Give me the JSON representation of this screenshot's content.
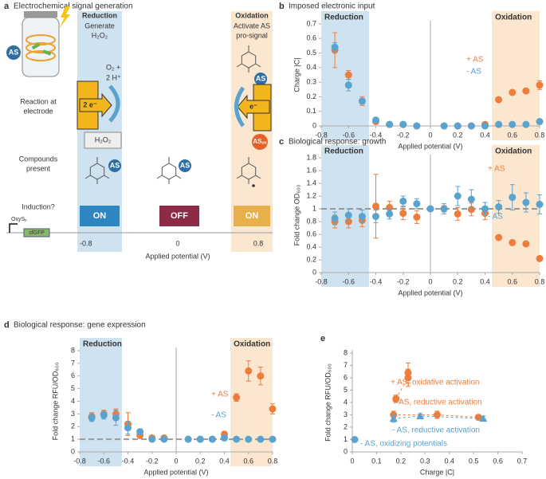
{
  "diagram": {
    "panel": "a",
    "title": "Electrochemical signal generation",
    "reduction": {
      "heading": "Reduction",
      "lines": [
        "Generate",
        "H₂O₂"
      ]
    },
    "oxidation": {
      "heading": "Oxidation",
      "lines": [
        "Activate AS",
        "pro-signal"
      ]
    },
    "row_labels": [
      [
        "Reaction at",
        "electrode"
      ],
      [
        "Compounds",
        "present"
      ],
      [
        "Induction?"
      ]
    ],
    "electrons": [
      "2 e⁻",
      "e⁻"
    ],
    "products": [
      "O₂ +",
      "2 H⁺"
    ],
    "compound_box": "H₂O₂",
    "badge": "AS",
    "oxidized": "ASₒₓ",
    "states": [
      "ON",
      "OFF",
      "ON"
    ],
    "axis_labels": [
      "-0.8",
      "0",
      "0.8"
    ],
    "xlabel": "Applied potential (V)",
    "promoter": "OxySₚ",
    "gene": "sfGFP"
  },
  "chart_data": [
    {
      "panel": "b",
      "type": "scatter",
      "title": "Imposed electronic input",
      "xlabel": "Applied potential (V)",
      "ylabel": "Charge |C|",
      "x": [
        -0.7,
        -0.6,
        -0.5,
        -0.4,
        -0.3,
        -0.2,
        -0.1,
        0.1,
        0.2,
        0.3,
        0.4,
        0.5,
        0.6,
        0.7,
        0.8
      ],
      "xlim": [
        -0.8,
        0.8
      ],
      "xticks": [
        -0.8,
        -0.6,
        -0.4,
        -0.2,
        0,
        0.2,
        0.4,
        0.6,
        0.8
      ],
      "ylim": [
        0,
        0.7
      ],
      "yticks": [
        0,
        0.1,
        0.2,
        0.3,
        0.4,
        0.5,
        0.6,
        0.7
      ],
      "regions": [
        {
          "label": "Reduction",
          "range": [
            -0.8,
            -0.45
          ],
          "color": "#cfe2ef"
        },
        {
          "label": "Oxidation",
          "range": [
            0.45,
            0.8
          ],
          "color": "#fbe6d0"
        }
      ],
      "series": [
        {
          "name": "+ AS",
          "color": "#ee7d3b",
          "values": [
            0.52,
            0.35,
            0.17,
            0.03,
            0.01,
            0.01,
            0,
            0,
            0,
            0,
            0.01,
            0.18,
            0.23,
            0.24,
            0.28
          ],
          "errors": [
            0.12,
            0.03,
            0.03,
            0.01,
            0,
            0,
            0,
            0,
            0,
            0,
            0,
            0.01,
            0.01,
            0.01,
            0.03
          ]
        },
        {
          "name": "- AS",
          "color": "#5aa3cf",
          "values": [
            0.54,
            0.28,
            0.17,
            0.04,
            0.01,
            0.01,
            0,
            0,
            0,
            0,
            0,
            0.01,
            0.01,
            0.01,
            0.03
          ],
          "errors": [
            0.03,
            0.04,
            0.02,
            0.01,
            0,
            0,
            0,
            0,
            0,
            0,
            0,
            0,
            0,
            0,
            0.01
          ]
        }
      ]
    },
    {
      "panel": "c",
      "type": "scatter",
      "title": "Biological response: growth",
      "xlabel": "Applied potential (V)",
      "ylabel": "Fold change OD₆₀₀",
      "x": [
        -0.7,
        -0.6,
        -0.5,
        -0.4,
        -0.3,
        -0.2,
        -0.1,
        0,
        0.1,
        0.2,
        0.3,
        0.4,
        0.5,
        0.6,
        0.7,
        0.8
      ],
      "xlim": [
        -0.8,
        0.8
      ],
      "xticks": [
        -0.8,
        -0.6,
        -0.4,
        -0.2,
        0,
        0.2,
        0.4,
        0.6,
        0.8
      ],
      "ylim": [
        0,
        1.8
      ],
      "yticks": [
        0,
        0.2,
        0.4,
        0.6,
        0.8,
        1,
        1.2,
        1.4,
        1.6,
        1.8
      ],
      "refline": 1,
      "regions": [
        {
          "label": "Reduction",
          "range": [
            -0.8,
            -0.45
          ],
          "color": "#cfe2ef"
        },
        {
          "label": "Oxidation",
          "range": [
            0.45,
            0.8
          ],
          "color": "#fbe6d0"
        }
      ],
      "series": [
        {
          "name": "+ AS",
          "color": "#ee7d3b",
          "values": [
            0.8,
            0.8,
            0.82,
            1.04,
            1.02,
            0.93,
            0.87,
            1,
            1,
            0.92,
            0.99,
            0.93,
            0.55,
            0.47,
            0.45,
            0.22
          ],
          "errors": [
            0.1,
            0.1,
            0.1,
            0.5,
            0.1,
            0.1,
            0.1,
            0,
            0.05,
            0.1,
            0.1,
            0.1,
            0.03,
            0.03,
            0.03,
            0.03
          ]
        },
        {
          "name": "- AS",
          "color": "#5aa3cf",
          "values": [
            0.85,
            0.9,
            0.88,
            0.88,
            0.92,
            1.12,
            1.08,
            1,
            1,
            1.2,
            1.15,
            1,
            1.03,
            1.18,
            1.1,
            1.07
          ],
          "errors": [
            0.1,
            0.1,
            0.1,
            0.1,
            0.08,
            0.08,
            0.08,
            0,
            0.08,
            0.15,
            0.15,
            0.1,
            0.1,
            0.2,
            0.15,
            0.15
          ]
        }
      ]
    },
    {
      "panel": "d",
      "type": "scatter",
      "title": "Biological response: gene expression",
      "xlabel": "Applied potential (V)",
      "ylabel": "Fold change RFU/OD₆₀₀",
      "x": [
        -0.7,
        -0.6,
        -0.5,
        -0.4,
        -0.3,
        -0.2,
        -0.1,
        0.1,
        0.2,
        0.3,
        0.4,
        0.5,
        0.6,
        0.7,
        0.8
      ],
      "xlim": [
        -0.8,
        0.8
      ],
      "xticks": [
        -0.8,
        -0.6,
        -0.4,
        -0.2,
        0,
        0.2,
        0.4,
        0.6,
        0.8
      ],
      "ylim": [
        0,
        8
      ],
      "yticks": [
        0,
        1,
        2,
        3,
        4,
        5,
        6,
        7,
        8
      ],
      "refline": 1,
      "regions": [
        {
          "label": "Reduction",
          "range": [
            -0.8,
            -0.45
          ],
          "color": "#cfe2ef"
        },
        {
          "label": "Oxidation",
          "range": [
            0.45,
            0.8
          ],
          "color": "#fbe6d0"
        }
      ],
      "series": [
        {
          "name": "+ AS",
          "color": "#ee7d3b",
          "values": [
            2.8,
            3.0,
            3.0,
            2.2,
            1.3,
            1.1,
            1.1,
            1.0,
            1.0,
            1.0,
            1.4,
            4.3,
            6.4,
            6.0,
            3.4
          ],
          "errors": [
            0.3,
            0.3,
            0.4,
            0.9,
            0.2,
            0.2,
            0.2,
            0.1,
            0.1,
            0.1,
            0.2,
            0.3,
            0.8,
            0.7,
            0.4
          ]
        },
        {
          "name": "- AS",
          "color": "#5aa3cf",
          "values": [
            2.7,
            2.9,
            2.7,
            1.9,
            1.6,
            1.0,
            1.0,
            1.0,
            1.0,
            1.0,
            1.1,
            1.0,
            1.0,
            1.0,
            1.0
          ],
          "errors": [
            0.3,
            0.3,
            0.6,
            0.5,
            0.2,
            0.1,
            0.1,
            0.1,
            0.1,
            0.1,
            0.1,
            0.1,
            0.1,
            0.1,
            0.1
          ]
        }
      ]
    },
    {
      "panel": "e",
      "type": "scatter",
      "xlabel": "Charge |C|",
      "ylabel": "Fold change RFU/OD₆₀₀",
      "xlim": [
        0,
        0.7
      ],
      "xticks": [
        0,
        0.1,
        0.2,
        0.3,
        0.4,
        0.5,
        0.6,
        0.7
      ],
      "ylim": [
        0,
        8
      ],
      "yticks": [
        0,
        1,
        2,
        3,
        4,
        5,
        6,
        7,
        8
      ],
      "series": [
        {
          "name": "+ AS, oxidative activation",
          "color": "#ee7d3b",
          "dashed": true,
          "x": [
            0.18,
            0.23,
            0.23
          ],
          "values": [
            4.3,
            6.0,
            6.4
          ],
          "errors": [
            0.3,
            0.7,
            0.8
          ]
        },
        {
          "name": "+ AS, reductive activation",
          "color": "#ee7d3b",
          "dashed": true,
          "x": [
            0.17,
            0.35,
            0.52
          ],
          "values": [
            3.0,
            3.0,
            2.8
          ],
          "errors": [
            0.3,
            0.3,
            0.2
          ]
        },
        {
          "name": "- AS, reductive activation",
          "color": "#5aa3cf",
          "dashed": true,
          "marker": "triangle",
          "x": [
            0.17,
            0.28,
            0.54
          ],
          "values": [
            2.7,
            2.9,
            2.7
          ],
          "errors": [
            0.3,
            0.2,
            0.2
          ]
        },
        {
          "name": "- AS, oxidizing potentials",
          "color": "#5aa3cf",
          "x": [
            0.01
          ],
          "values": [
            1.0
          ],
          "errors": [
            0.1
          ]
        }
      ]
    }
  ]
}
